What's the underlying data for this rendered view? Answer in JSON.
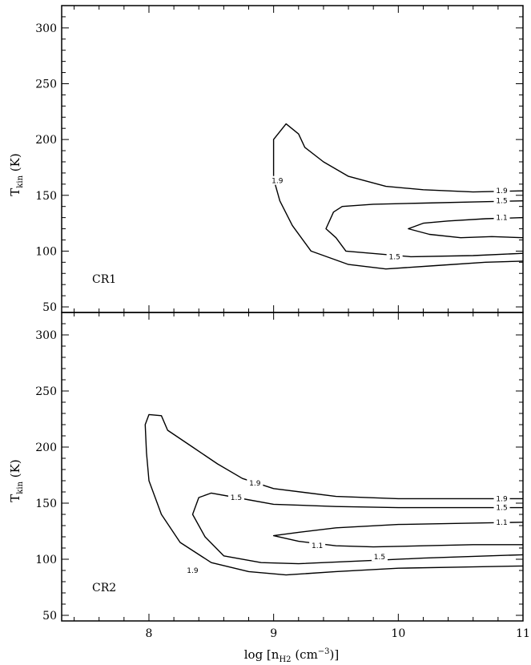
{
  "chart_data": [
    {
      "type": "line",
      "panel_label": "CR1",
      "xlabel": "log [n_H2 (cm^-3)]",
      "ylabel": "T_kin (K)",
      "xlim": [
        7.3,
        11.0
      ],
      "ylim": [
        45,
        320
      ],
      "xticks": [
        8,
        9,
        10,
        11
      ],
      "yticks": [
        50,
        100,
        150,
        200,
        250,
        300
      ],
      "show_x_tick_labels": false,
      "contours": [
        {
          "level": "1.9",
          "label_positions": [
            [
              9.03,
              163
            ],
            [
              10.83,
              154
            ]
          ],
          "points": [
            [
              11.0,
              154
            ],
            [
              10.6,
              153
            ],
            [
              10.2,
              155
            ],
            [
              9.9,
              158
            ],
            [
              9.6,
              167
            ],
            [
              9.4,
              180
            ],
            [
              9.25,
              193
            ],
            [
              9.2,
              205
            ],
            [
              9.1,
              214
            ],
            [
              9.0,
              200
            ],
            [
              9.0,
              165
            ],
            [
              9.05,
              145
            ],
            [
              9.15,
              123
            ],
            [
              9.3,
              100
            ],
            [
              9.6,
              88
            ],
            [
              9.9,
              84
            ],
            [
              10.3,
              87
            ],
            [
              10.7,
              90
            ],
            [
              11.0,
              91
            ]
          ]
        },
        {
          "level": "1.5",
          "label_positions": [
            [
              9.97,
              95
            ],
            [
              10.83,
              145
            ]
          ],
          "points": [
            [
              11.0,
              145
            ],
            [
              10.6,
              144
            ],
            [
              10.2,
              143
            ],
            [
              9.8,
              142
            ],
            [
              9.55,
              140
            ],
            [
              9.48,
              135
            ],
            [
              9.42,
              120
            ],
            [
              9.5,
              112
            ],
            [
              9.58,
              100
            ],
            [
              10.1,
              95
            ],
            [
              10.6,
              96
            ],
            [
              11.0,
              98
            ]
          ]
        },
        {
          "level": "1.1",
          "label_positions": [
            [
              10.83,
              130
            ]
          ],
          "points": [
            [
              11.0,
              130
            ],
            [
              10.7,
              129
            ],
            [
              10.4,
              127
            ],
            [
              10.2,
              125
            ],
            [
              10.08,
              120
            ],
            [
              10.25,
              115
            ],
            [
              10.5,
              112
            ],
            [
              10.75,
              113
            ],
            [
              11.0,
              112
            ]
          ]
        }
      ]
    },
    {
      "type": "line",
      "panel_label": "CR2",
      "xlabel": "log [n_H2 (cm^-3)]",
      "ylabel": "T_kin (K)",
      "xlim": [
        7.3,
        11.0
      ],
      "ylim": [
        45,
        320
      ],
      "xticks": [
        8,
        9,
        10,
        11
      ],
      "yticks": [
        50,
        100,
        150,
        200,
        250,
        300
      ],
      "show_x_tick_labels": true,
      "contours": [
        {
          "level": "1.9",
          "label_positions": [
            [
              8.85,
              168
            ],
            [
              10.83,
              154
            ],
            [
              8.35,
              90
            ]
          ],
          "points": [
            [
              11.0,
              154
            ],
            [
              10.5,
              154
            ],
            [
              10.0,
              154
            ],
            [
              9.5,
              156
            ],
            [
              9.0,
              163
            ],
            [
              8.75,
              172
            ],
            [
              8.55,
              185
            ],
            [
              8.35,
              200
            ],
            [
              8.15,
              215
            ],
            [
              8.1,
              228
            ],
            [
              8.0,
              229
            ],
            [
              7.97,
              220
            ],
            [
              7.98,
              195
            ],
            [
              8.0,
              170
            ],
            [
              8.1,
              140
            ],
            [
              8.25,
              115
            ],
            [
              8.5,
              97
            ],
            [
              8.8,
              89
            ],
            [
              9.1,
              86
            ],
            [
              9.5,
              89
            ],
            [
              10.0,
              92
            ],
            [
              10.5,
              93
            ],
            [
              11.0,
              94
            ]
          ]
        },
        {
          "level": "1.5",
          "label_positions": [
            [
              8.7,
              155
            ],
            [
              10.83,
              146
            ],
            [
              9.85,
              102
            ]
          ],
          "points": [
            [
              11.0,
              146
            ],
            [
              10.5,
              146
            ],
            [
              10.0,
              146
            ],
            [
              9.5,
              147
            ],
            [
              9.0,
              149
            ],
            [
              8.7,
              155
            ],
            [
              8.5,
              159
            ],
            [
              8.4,
              155
            ],
            [
              8.35,
              140
            ],
            [
              8.45,
              120
            ],
            [
              8.6,
              103
            ],
            [
              8.9,
              97
            ],
            [
              9.2,
              96
            ],
            [
              9.8,
              99
            ],
            [
              10.2,
              101
            ],
            [
              11.0,
              104
            ]
          ]
        },
        {
          "level": "1.1",
          "label_positions": [
            [
              9.35,
              112
            ],
            [
              10.83,
              133
            ]
          ],
          "points": [
            [
              11.0,
              133
            ],
            [
              10.5,
              132
            ],
            [
              10.0,
              131
            ],
            [
              9.5,
              128
            ],
            [
              9.2,
              124
            ],
            [
              9.0,
              121
            ],
            [
              9.2,
              116
            ],
            [
              9.5,
              112
            ],
            [
              9.8,
              111
            ],
            [
              10.2,
              112
            ],
            [
              10.6,
              113
            ],
            [
              11.0,
              113
            ]
          ]
        }
      ]
    }
  ]
}
